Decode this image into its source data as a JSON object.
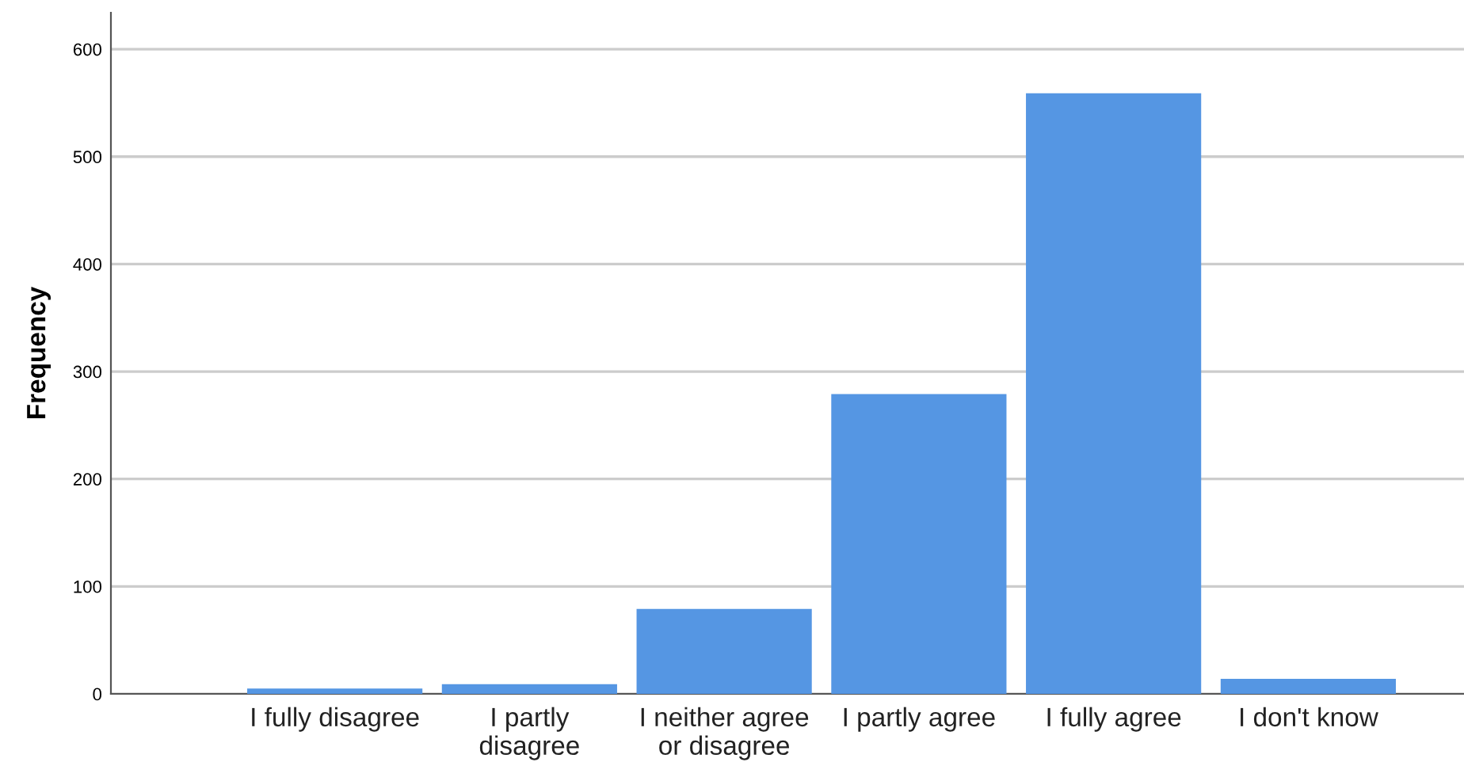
{
  "chart_data": {
    "type": "bar",
    "ylabel": "Frequency",
    "categories": [
      "I fully disagree",
      "I partly\ndisagree",
      "I neither agree\nor disagree",
      "I partly agree",
      "I fully agree",
      "I don't know"
    ],
    "values": [
      5,
      9,
      79,
      279,
      559,
      14
    ],
    "color": "#5596e3",
    "ylim": [
      0,
      634
    ],
    "yticks": [
      0,
      100,
      200,
      300,
      400,
      500,
      600
    ],
    "grid": "y"
  }
}
